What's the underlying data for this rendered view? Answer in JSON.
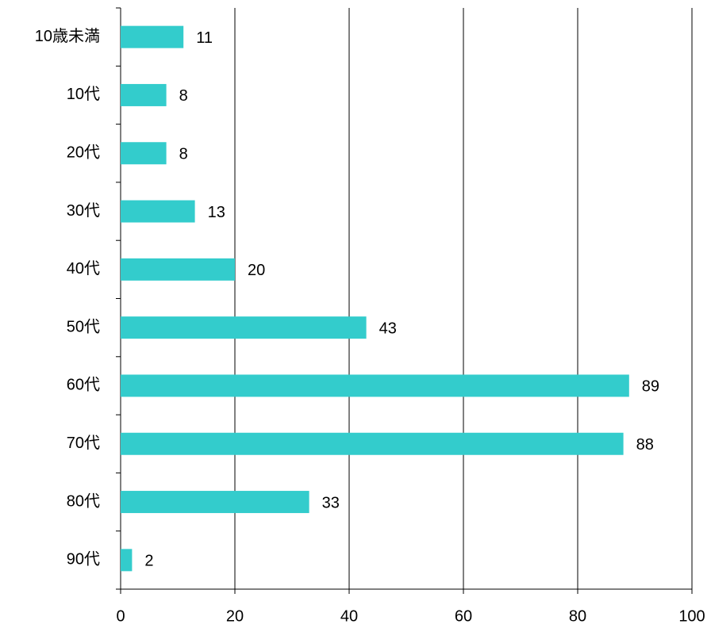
{
  "chart_data": {
    "type": "bar",
    "orientation": "horizontal",
    "categories": [
      "10歳未満",
      "10代",
      "20代",
      "30代",
      "40代",
      "50代",
      "60代",
      "70代",
      "80代",
      "90代"
    ],
    "values": [
      11,
      8,
      8,
      13,
      20,
      43,
      89,
      88,
      33,
      2
    ],
    "color": "#33cccc",
    "xlim": [
      0,
      100
    ],
    "xticks": [
      0,
      20,
      40,
      60,
      80,
      100
    ],
    "grid": true
  }
}
